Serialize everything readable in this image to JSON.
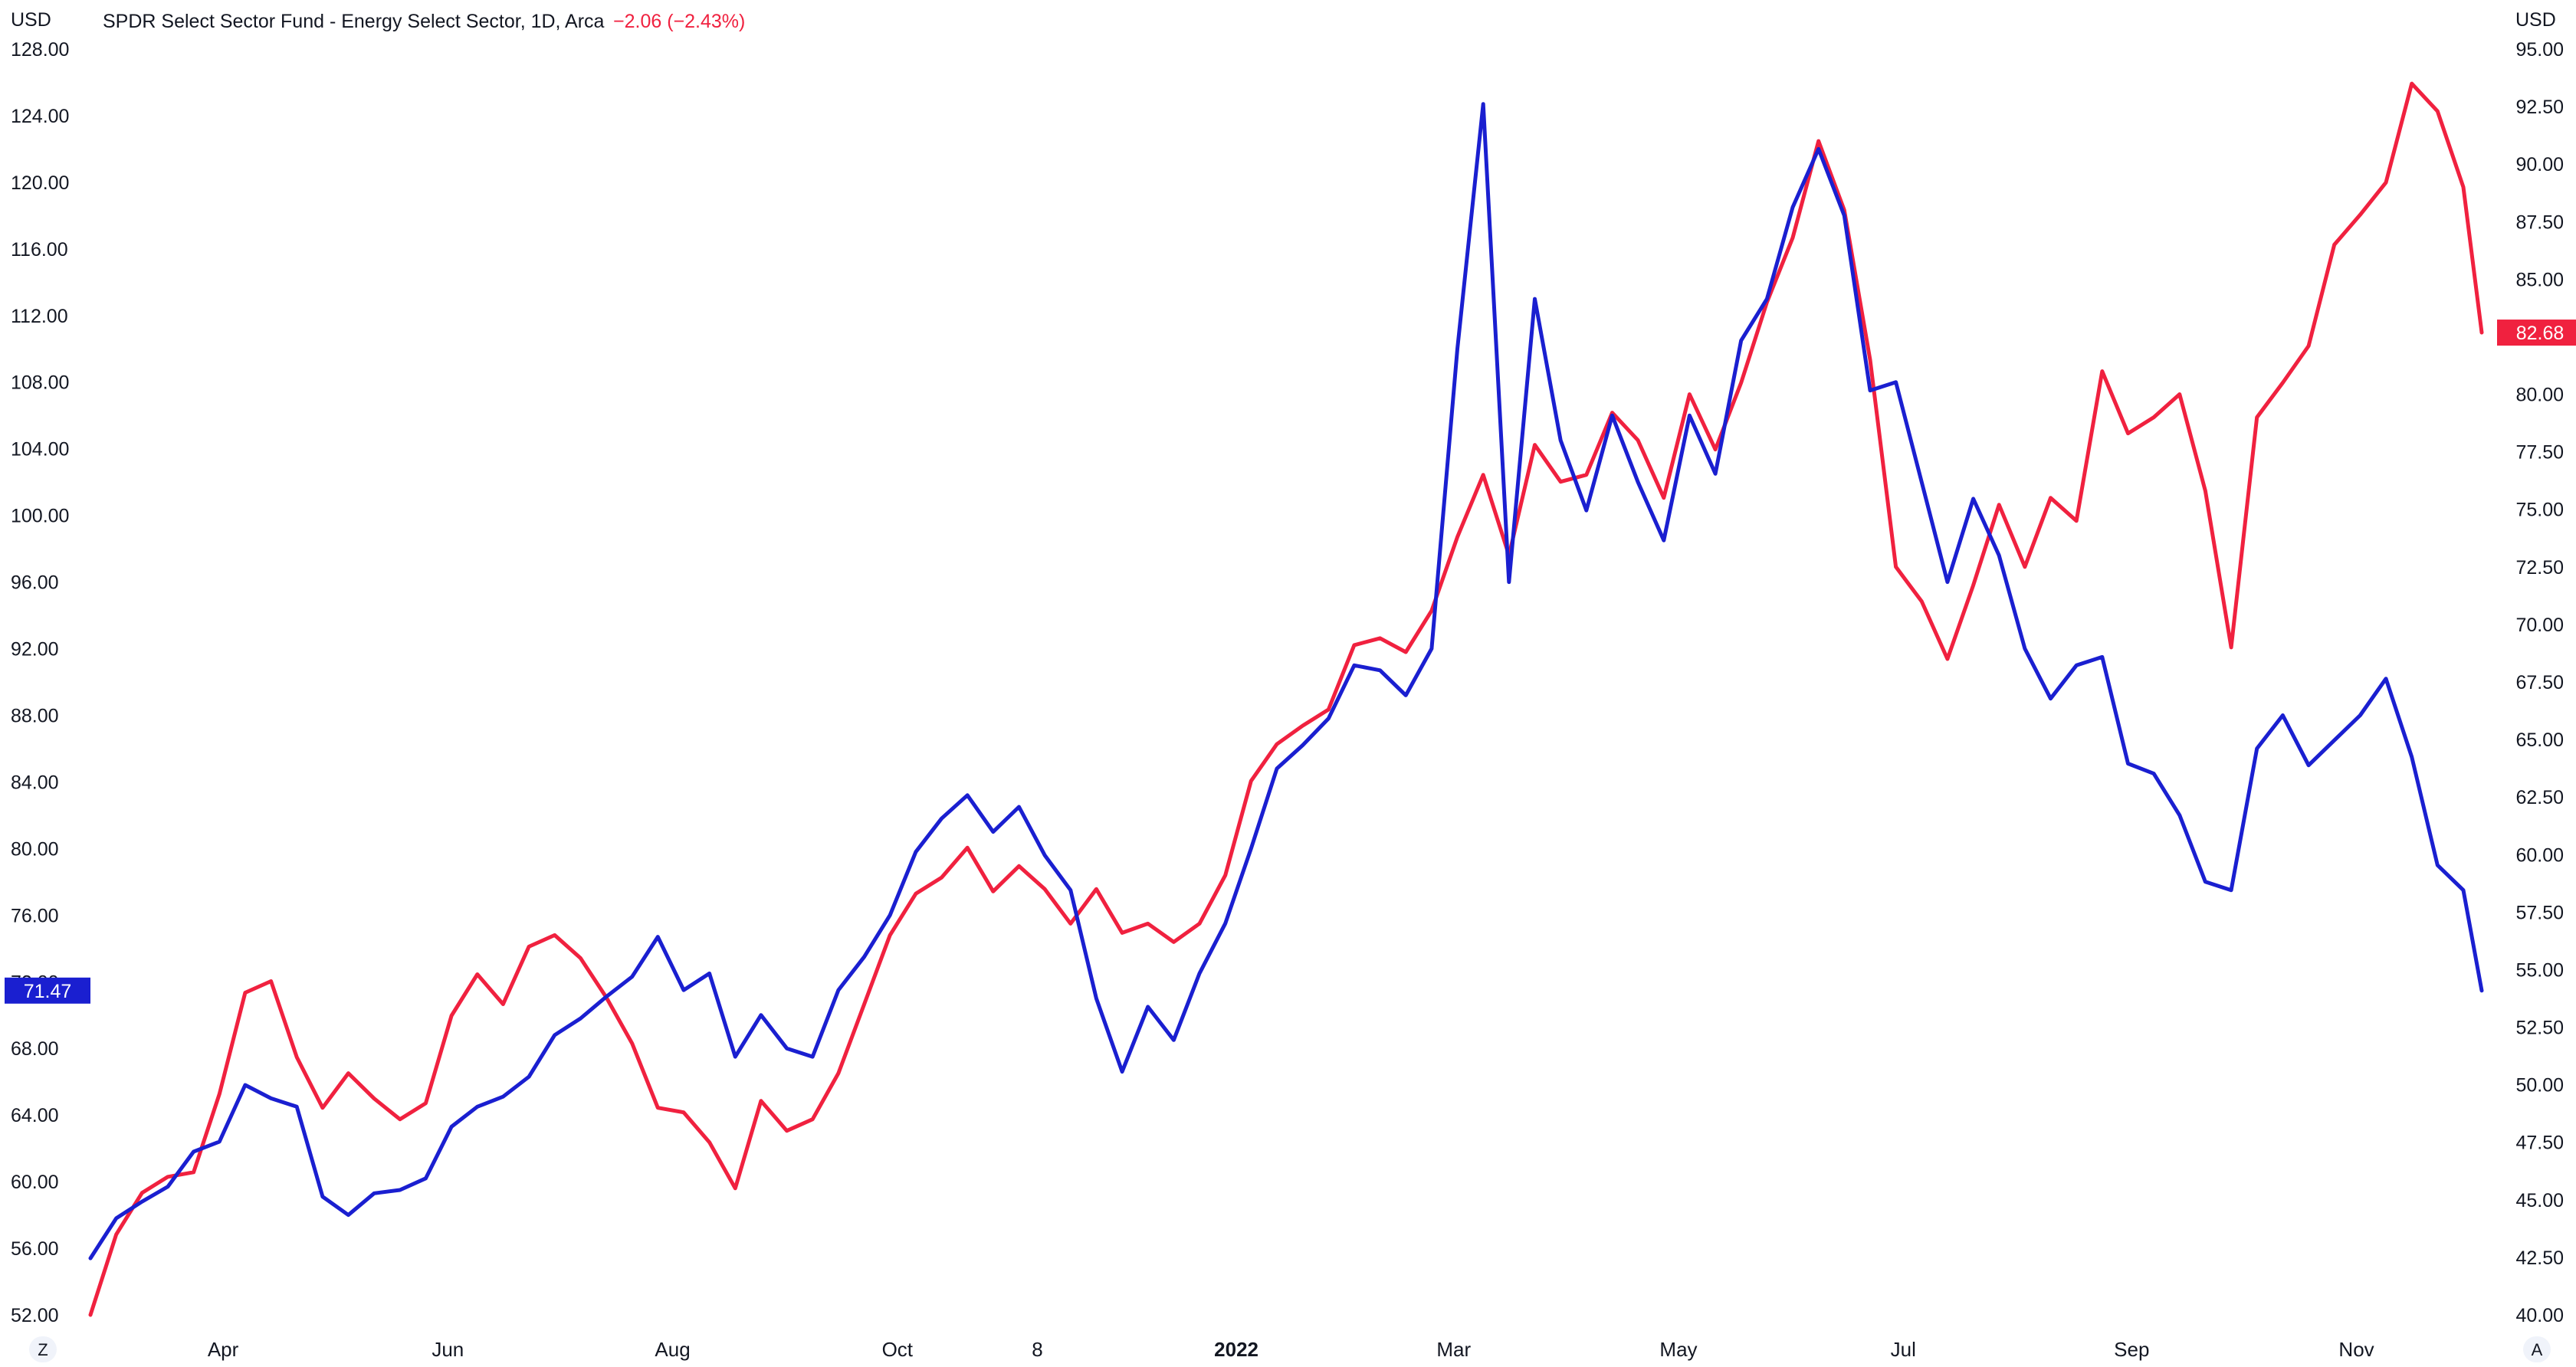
{
  "header": {
    "left_unit": "USD",
    "right_unit": "USD",
    "symbol_title": "SPDR Select Sector Fund - Energy Select Sector, 1D, Arca",
    "change_text": "−2.06 (−2.43%)"
  },
  "corner_buttons": {
    "left": "Z",
    "right": "A"
  },
  "colors": {
    "red_series": "#f0213f",
    "blue_series": "#1a1fd0",
    "axis_text": "#131722"
  },
  "chart_data": {
    "type": "line",
    "x_ticks": [
      {
        "label": "Apr",
        "date": "2021-04-01"
      },
      {
        "label": "Jun",
        "date": "2021-06-01"
      },
      {
        "label": "Aug",
        "date": "2021-08-01"
      },
      {
        "label": "Oct",
        "date": "2021-10-01"
      },
      {
        "label": "8",
        "date": "2021-11-08"
      },
      {
        "label": "2022",
        "date": "2022-01-01",
        "bold": true
      },
      {
        "label": "Mar",
        "date": "2022-03-01"
      },
      {
        "label": "May",
        "date": "2022-05-01"
      },
      {
        "label": "Jul",
        "date": "2022-07-01"
      },
      {
        "label": "Sep",
        "date": "2022-09-01"
      },
      {
        "label": "Nov",
        "date": "2022-11-01"
      }
    ],
    "x_range": [
      "2021-02-24",
      "2022-12-05"
    ],
    "left_axis": {
      "unit": "USD",
      "ylim": [
        52,
        128
      ],
      "ticks": [
        "52.00",
        "56.00",
        "60.00",
        "64.00",
        "68.00",
        "72.00",
        "76.00",
        "80.00",
        "84.00",
        "88.00",
        "92.00",
        "96.00",
        "100.00",
        "104.00",
        "108.00",
        "112.00",
        "116.00",
        "120.00",
        "124.00",
        "128.00"
      ]
    },
    "right_axis": {
      "unit": "USD",
      "ylim": [
        40,
        95
      ],
      "ticks": [
        "40.00",
        "42.50",
        "45.00",
        "47.50",
        "50.00",
        "52.50",
        "55.00",
        "57.50",
        "60.00",
        "62.50",
        "65.00",
        "67.50",
        "70.00",
        "72.50",
        "75.00",
        "77.50",
        "80.00",
        "82.50",
        "85.00",
        "87.50",
        "90.00",
        "92.50",
        "95.00"
      ]
    },
    "series": [
      {
        "color": "#f0213f",
        "axis": "right",
        "last_value_label": "82.68",
        "points": [
          [
            "2021-02-24",
            40.0
          ],
          [
            "2021-03-03",
            43.5
          ],
          [
            "2021-03-10",
            45.3
          ],
          [
            "2021-03-17",
            46.0
          ],
          [
            "2021-03-24",
            46.2
          ],
          [
            "2021-03-31",
            49.6
          ],
          [
            "2021-04-07",
            54.0
          ],
          [
            "2021-04-14",
            54.5
          ],
          [
            "2021-04-21",
            51.2
          ],
          [
            "2021-04-28",
            49.0
          ],
          [
            "2021-05-05",
            50.5
          ],
          [
            "2021-05-12",
            49.4
          ],
          [
            "2021-05-19",
            48.5
          ],
          [
            "2021-05-26",
            49.2
          ],
          [
            "2021-06-02",
            53.0
          ],
          [
            "2021-06-09",
            54.8
          ],
          [
            "2021-06-16",
            53.5
          ],
          [
            "2021-06-23",
            56.0
          ],
          [
            "2021-06-30",
            56.5
          ],
          [
            "2021-07-07",
            55.5
          ],
          [
            "2021-07-14",
            53.8
          ],
          [
            "2021-07-21",
            51.8
          ],
          [
            "2021-07-28",
            49.0
          ],
          [
            "2021-08-04",
            48.8
          ],
          [
            "2021-08-11",
            47.5
          ],
          [
            "2021-08-18",
            45.5
          ],
          [
            "2021-08-25",
            49.3
          ],
          [
            "2021-09-01",
            48.0
          ],
          [
            "2021-09-08",
            48.5
          ],
          [
            "2021-09-15",
            50.5
          ],
          [
            "2021-09-22",
            53.5
          ],
          [
            "2021-09-29",
            56.5
          ],
          [
            "2021-10-06",
            58.3
          ],
          [
            "2021-10-13",
            59.0
          ],
          [
            "2021-10-20",
            60.3
          ],
          [
            "2021-10-27",
            58.4
          ],
          [
            "2021-11-03",
            59.5
          ],
          [
            "2021-11-10",
            58.5
          ],
          [
            "2021-11-17",
            57.0
          ],
          [
            "2021-11-24",
            58.5
          ],
          [
            "2021-12-01",
            56.6
          ],
          [
            "2021-12-08",
            57.0
          ],
          [
            "2021-12-15",
            56.2
          ],
          [
            "2021-12-22",
            57.0
          ],
          [
            "2021-12-29",
            59.1
          ],
          [
            "2022-01-05",
            63.2
          ],
          [
            "2022-01-12",
            64.8
          ],
          [
            "2022-01-19",
            65.6
          ],
          [
            "2022-01-26",
            66.3
          ],
          [
            "2022-02-02",
            69.1
          ],
          [
            "2022-02-09",
            69.4
          ],
          [
            "2022-02-16",
            68.8
          ],
          [
            "2022-02-23",
            70.6
          ],
          [
            "2022-03-02",
            73.8
          ],
          [
            "2022-03-09",
            76.5
          ],
          [
            "2022-03-16",
            73.0
          ],
          [
            "2022-03-23",
            77.8
          ],
          [
            "2022-03-30",
            76.2
          ],
          [
            "2022-04-06",
            76.5
          ],
          [
            "2022-04-13",
            79.2
          ],
          [
            "2022-04-20",
            78.0
          ],
          [
            "2022-04-27",
            75.5
          ],
          [
            "2022-05-04",
            80.0
          ],
          [
            "2022-05-11",
            77.6
          ],
          [
            "2022-05-18",
            80.5
          ],
          [
            "2022-05-25",
            84.0
          ],
          [
            "2022-06-01",
            86.8
          ],
          [
            "2022-06-08",
            91.0
          ],
          [
            "2022-06-15",
            88.0
          ],
          [
            "2022-06-22",
            81.5
          ],
          [
            "2022-06-29",
            72.5
          ],
          [
            "2022-07-06",
            71.0
          ],
          [
            "2022-07-13",
            68.5
          ],
          [
            "2022-07-20",
            71.7
          ],
          [
            "2022-07-27",
            75.2
          ],
          [
            "2022-08-03",
            72.5
          ],
          [
            "2022-08-10",
            75.5
          ],
          [
            "2022-08-17",
            74.5
          ],
          [
            "2022-08-24",
            81.0
          ],
          [
            "2022-08-31",
            78.3
          ],
          [
            "2022-09-07",
            79.0
          ],
          [
            "2022-09-14",
            80.0
          ],
          [
            "2022-09-21",
            75.8
          ],
          [
            "2022-09-28",
            69.0
          ],
          [
            "2022-10-05",
            79.0
          ],
          [
            "2022-10-12",
            80.5
          ],
          [
            "2022-10-19",
            82.1
          ],
          [
            "2022-10-26",
            86.5
          ],
          [
            "2022-11-02",
            87.8
          ],
          [
            "2022-11-09",
            89.2
          ],
          [
            "2022-11-16",
            93.5
          ],
          [
            "2022-11-23",
            92.3
          ],
          [
            "2022-11-30",
            89.0
          ],
          [
            "2022-12-05",
            82.68
          ]
        ]
      },
      {
        "color": "#1a1fd0",
        "axis": "left",
        "last_value_label": "71.47",
        "points": [
          [
            "2021-02-24",
            55.4
          ],
          [
            "2021-03-03",
            57.8
          ],
          [
            "2021-03-10",
            58.8
          ],
          [
            "2021-03-17",
            59.7
          ],
          [
            "2021-03-24",
            61.8
          ],
          [
            "2021-03-31",
            62.4
          ],
          [
            "2021-04-07",
            65.8
          ],
          [
            "2021-04-14",
            65.0
          ],
          [
            "2021-04-21",
            64.5
          ],
          [
            "2021-04-28",
            59.1
          ],
          [
            "2021-05-05",
            58.0
          ],
          [
            "2021-05-12",
            59.3
          ],
          [
            "2021-05-19",
            59.5
          ],
          [
            "2021-05-26",
            60.2
          ],
          [
            "2021-06-02",
            63.3
          ],
          [
            "2021-06-09",
            64.5
          ],
          [
            "2021-06-16",
            65.1
          ],
          [
            "2021-06-23",
            66.3
          ],
          [
            "2021-06-30",
            68.8
          ],
          [
            "2021-07-07",
            69.8
          ],
          [
            "2021-07-14",
            71.1
          ],
          [
            "2021-07-21",
            72.3
          ],
          [
            "2021-07-28",
            74.7
          ],
          [
            "2021-08-04",
            71.5
          ],
          [
            "2021-08-11",
            72.5
          ],
          [
            "2021-08-18",
            67.5
          ],
          [
            "2021-08-25",
            70.0
          ],
          [
            "2021-09-01",
            68.0
          ],
          [
            "2021-09-08",
            67.5
          ],
          [
            "2021-09-15",
            71.5
          ],
          [
            "2021-09-22",
            73.5
          ],
          [
            "2021-09-29",
            76.0
          ],
          [
            "2021-10-06",
            79.8
          ],
          [
            "2021-10-13",
            81.8
          ],
          [
            "2021-10-20",
            83.2
          ],
          [
            "2021-10-27",
            81.0
          ],
          [
            "2021-11-03",
            82.5
          ],
          [
            "2021-11-10",
            79.6
          ],
          [
            "2021-11-17",
            77.5
          ],
          [
            "2021-11-24",
            71.0
          ],
          [
            "2021-12-01",
            66.6
          ],
          [
            "2021-12-08",
            70.5
          ],
          [
            "2021-12-15",
            68.5
          ],
          [
            "2021-12-22",
            72.5
          ],
          [
            "2021-12-29",
            75.5
          ],
          [
            "2022-01-05",
            80.0
          ],
          [
            "2022-01-12",
            84.8
          ],
          [
            "2022-01-19",
            86.2
          ],
          [
            "2022-01-26",
            87.8
          ],
          [
            "2022-02-02",
            91.0
          ],
          [
            "2022-02-09",
            90.7
          ],
          [
            "2022-02-16",
            89.2
          ],
          [
            "2022-02-23",
            92.0
          ],
          [
            "2022-03-02",
            110.0
          ],
          [
            "2022-03-09",
            124.7
          ],
          [
            "2022-03-16",
            96.0
          ],
          [
            "2022-03-23",
            113.0
          ],
          [
            "2022-03-30",
            104.5
          ],
          [
            "2022-04-06",
            100.3
          ],
          [
            "2022-04-13",
            106.0
          ],
          [
            "2022-04-20",
            102.0
          ],
          [
            "2022-04-27",
            98.5
          ],
          [
            "2022-05-04",
            106.0
          ],
          [
            "2022-05-11",
            102.5
          ],
          [
            "2022-05-18",
            110.5
          ],
          [
            "2022-05-25",
            113.0
          ],
          [
            "2022-06-01",
            118.5
          ],
          [
            "2022-06-08",
            122.0
          ],
          [
            "2022-06-15",
            118.0
          ],
          [
            "2022-06-22",
            107.5
          ],
          [
            "2022-06-29",
            108.0
          ],
          [
            "2022-07-06",
            102.0
          ],
          [
            "2022-07-13",
            96.0
          ],
          [
            "2022-07-20",
            101.0
          ],
          [
            "2022-07-27",
            97.6
          ],
          [
            "2022-08-03",
            92.0
          ],
          [
            "2022-08-10",
            89.0
          ],
          [
            "2022-08-17",
            91.0
          ],
          [
            "2022-08-24",
            91.5
          ],
          [
            "2022-08-31",
            85.1
          ],
          [
            "2022-09-07",
            84.5
          ],
          [
            "2022-09-14",
            82.0
          ],
          [
            "2022-09-21",
            78.0
          ],
          [
            "2022-09-28",
            77.5
          ],
          [
            "2022-10-05",
            86.0
          ],
          [
            "2022-10-12",
            88.0
          ],
          [
            "2022-10-19",
            85.0
          ],
          [
            "2022-10-26",
            86.5
          ],
          [
            "2022-11-02",
            88.0
          ],
          [
            "2022-11-09",
            90.2
          ],
          [
            "2022-11-16",
            85.5
          ],
          [
            "2022-11-23",
            79.0
          ],
          [
            "2022-11-30",
            77.5
          ],
          [
            "2022-12-05",
            71.47
          ]
        ]
      }
    ]
  }
}
